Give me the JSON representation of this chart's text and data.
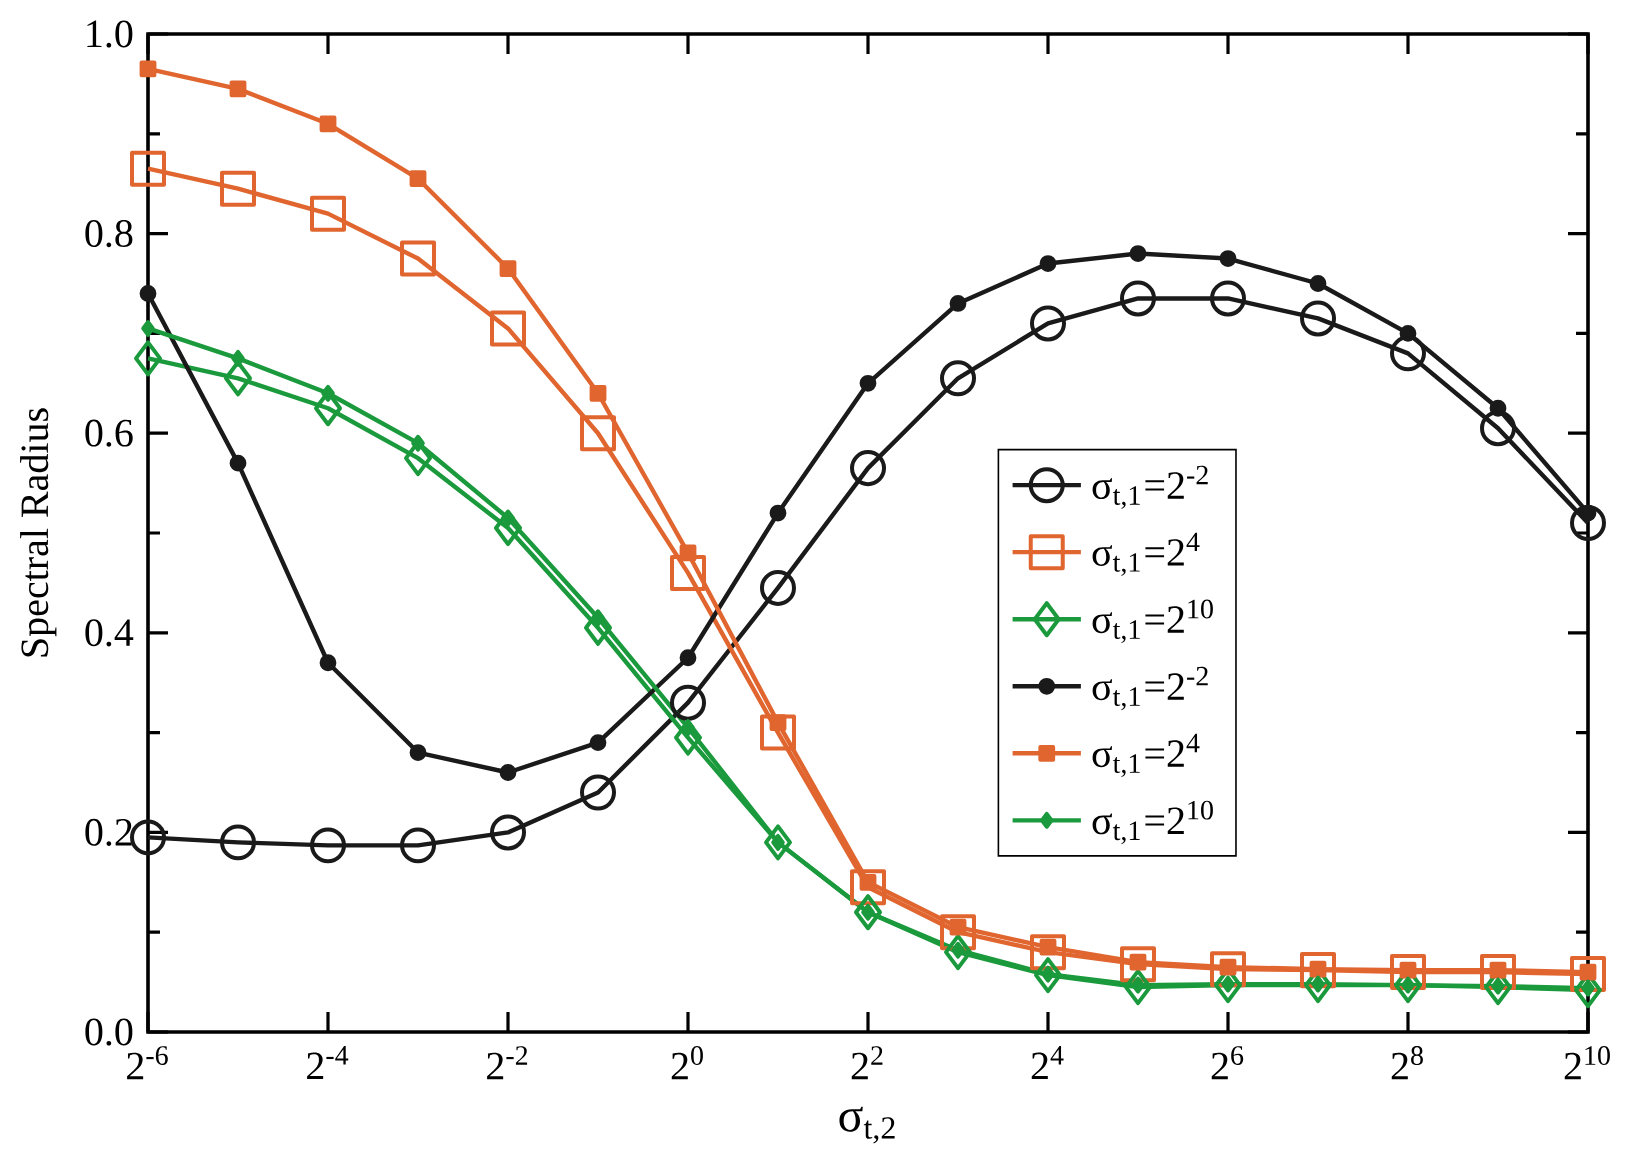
{
  "chart_data": {
    "type": "line",
    "xlabel": "σ$_{t,2}$",
    "ylabel": "Spectral Radius",
    "x": [
      0.015625,
      0.03125,
      0.0625,
      0.125,
      0.25,
      0.5,
      1,
      2,
      4,
      8,
      16,
      32,
      64,
      128,
      256,
      512,
      1024
    ],
    "log": "x",
    "xlim": [
      0.015625,
      1024
    ],
    "ylim": [
      0,
      1
    ],
    "xticks": [
      {
        "value": 0.015625,
        "label": "2$^{-6}$"
      },
      {
        "value": 0.0625,
        "label": "2$^{-4}$"
      },
      {
        "value": 0.25,
        "label": "2$^{-2}$"
      },
      {
        "value": 1,
        "label": "2$^{0}$"
      },
      {
        "value": 4,
        "label": "2$^{2}$"
      },
      {
        "value": 16,
        "label": "2$^{4}$"
      },
      {
        "value": 64,
        "label": "2$^{6}$"
      },
      {
        "value": 256,
        "label": "2$^{8}$"
      },
      {
        "value": 1024,
        "label": "2$^{10}$"
      }
    ],
    "yticks": [
      {
        "value": 0,
        "label": "0.0"
      },
      {
        "value": 0.2,
        "label": "0.2"
      },
      {
        "value": 0.4,
        "label": "0.4"
      },
      {
        "value": 0.6,
        "label": "0.6"
      },
      {
        "value": 0.8,
        "label": "0.8"
      },
      {
        "value": 1,
        "label": "1.0"
      }
    ],
    "grid": false,
    "legend": "right",
    "line_style": "solid",
    "series": [
      {
        "name": "σ$_{t,1}$=2$^{-2}$",
        "color": "#1a1a1a",
        "marker": "circle",
        "values": [
          0.195,
          0.19,
          0.187,
          0.187,
          0.2,
          0.24,
          0.33,
          0.445,
          0.565,
          0.655,
          0.71,
          0.735,
          0.735,
          0.715,
          0.68,
          0.605,
          0.51
        ]
      },
      {
        "name": "σ$_{t,1}$=2$^{4}$",
        "color": "#e0652f",
        "marker": "square",
        "values": [
          0.865,
          0.845,
          0.82,
          0.775,
          0.705,
          0.6,
          0.46,
          0.3,
          0.145,
          0.1,
          0.08,
          0.068,
          0.063,
          0.062,
          0.06,
          0.06,
          0.058
        ]
      },
      {
        "name": "σ$_{t,1}$=2$^{10}$",
        "color": "#1a9a3c",
        "marker": "diamond",
        "values": [
          0.675,
          0.655,
          0.625,
          0.575,
          0.505,
          0.405,
          0.295,
          0.19,
          0.12,
          0.08,
          0.057,
          0.045,
          0.047,
          0.047,
          0.047,
          0.045,
          0.042
        ]
      },
      {
        "name": "σ$_{t,1}$=2$^{-2}$",
        "color": "#1a1a1a",
        "marker": "circle",
        "values": [
          0.74,
          0.57,
          0.37,
          0.28,
          0.26,
          0.29,
          0.375,
          0.52,
          0.65,
          0.73,
          0.77,
          0.78,
          0.775,
          0.75,
          0.7,
          0.625,
          0.52
        ]
      },
      {
        "name": "σ$_{t,1}$=2$^{4}$",
        "color": "#e0652f",
        "marker": "square",
        "values": [
          0.965,
          0.945,
          0.91,
          0.855,
          0.765,
          0.64,
          0.48,
          0.31,
          0.15,
          0.105,
          0.085,
          0.07,
          0.065,
          0.063,
          0.062,
          0.062,
          0.06
        ]
      },
      {
        "name": "σ$_{t,1}$=2$^{10}$",
        "color": "#1a9a3c",
        "marker": "diamond",
        "values": [
          0.705,
          0.675,
          0.64,
          0.59,
          0.515,
          0.415,
          0.305,
          0.19,
          0.12,
          0.082,
          0.058,
          0.047,
          0.048,
          0.048,
          0.047,
          0.046,
          0.044
        ]
      }
    ]
  }
}
